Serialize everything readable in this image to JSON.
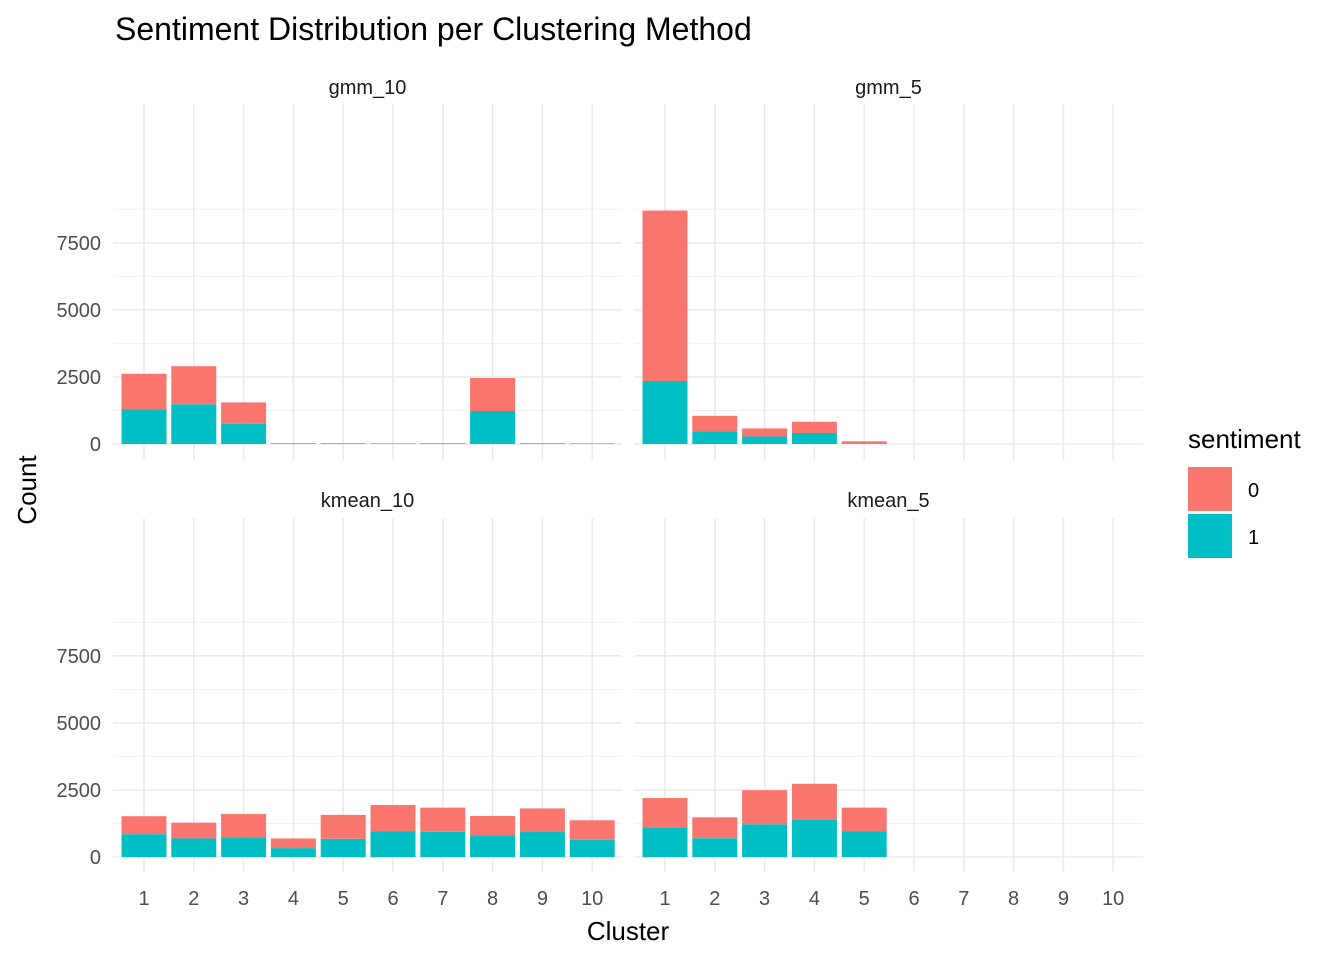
{
  "chart_data": {
    "type": "bar",
    "stacked": true,
    "title": "Sentiment Distribution per Clustering Method",
    "xlabel": "Cluster",
    "ylabel": "Count",
    "x_categories": [
      "1",
      "2",
      "3",
      "4",
      "5",
      "6",
      "7",
      "8",
      "9",
      "10"
    ],
    "y_ticks": [
      0,
      2500,
      5000,
      7500
    ],
    "ylim": [
      0,
      8700
    ],
    "grid": true,
    "legend": {
      "title": "sentiment",
      "position": "right",
      "entries": [
        {
          "label": "0",
          "color": "#F8766D"
        },
        {
          "label": "1",
          "color": "#00BFC4"
        }
      ]
    },
    "facets": [
      {
        "name": "gmm_10",
        "categories": [
          "1",
          "2",
          "3",
          "4",
          "5",
          "6",
          "7",
          "8",
          "9",
          "10"
        ],
        "series": [
          {
            "sentiment": "1",
            "color": "#00BFC4",
            "values": [
              1300,
              1480,
              750,
              25,
              25,
              0,
              25,
              1230,
              25,
              0
            ]
          },
          {
            "sentiment": "0",
            "color": "#F8766D",
            "values": [
              1320,
              1420,
              800,
              0,
              0,
              25,
              0,
              1230,
              0,
              25
            ]
          }
        ]
      },
      {
        "name": "gmm_5",
        "categories": [
          "1",
          "2",
          "3",
          "4",
          "5"
        ],
        "series": [
          {
            "sentiment": "1",
            "color": "#00BFC4",
            "values": [
              2350,
              480,
              280,
              410,
              0
            ]
          },
          {
            "sentiment": "0",
            "color": "#F8766D",
            "values": [
              6350,
              570,
              300,
              420,
              100
            ]
          }
        ]
      },
      {
        "name": "kmean_10",
        "categories": [
          "1",
          "2",
          "3",
          "4",
          "5",
          "6",
          "7",
          "8",
          "9",
          "10"
        ],
        "series": [
          {
            "sentiment": "1",
            "color": "#00BFC4",
            "values": [
              850,
              690,
              740,
              330,
              680,
              950,
              940,
              800,
              930,
              640
            ]
          },
          {
            "sentiment": "0",
            "color": "#F8766D",
            "values": [
              670,
              590,
              860,
              360,
              890,
              990,
              900,
              730,
              880,
              730
            ]
          }
        ]
      },
      {
        "name": "kmean_5",
        "categories": [
          "1",
          "2",
          "3",
          "4",
          "5"
        ],
        "series": [
          {
            "sentiment": "1",
            "color": "#00BFC4",
            "values": [
              1110,
              700,
              1220,
              1380,
              950
            ]
          },
          {
            "sentiment": "0",
            "color": "#F8766D",
            "values": [
              1090,
              780,
              1270,
              1350,
              890
            ]
          }
        ]
      }
    ]
  }
}
